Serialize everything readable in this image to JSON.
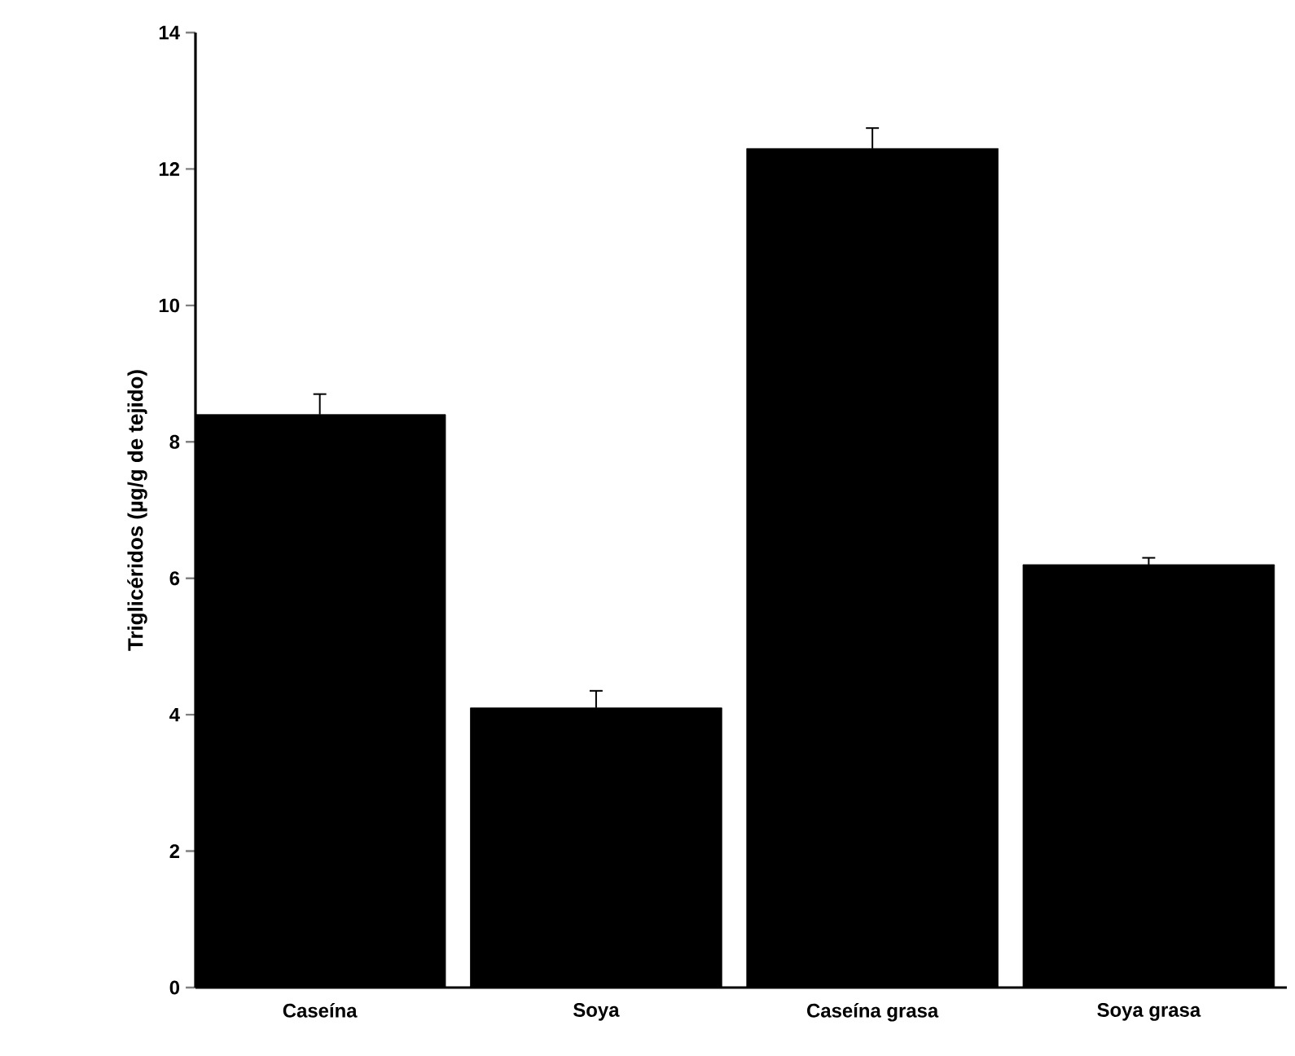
{
  "chart_data": {
    "type": "bar",
    "ylabel": "Triglicéridos (µg/g de tejido)",
    "categories": [
      "Caseína",
      "Soya",
      "Caseína grasa",
      "Soya grasa"
    ],
    "values": [
      8.4,
      4.1,
      12.3,
      6.2
    ],
    "errors": [
      0.3,
      0.25,
      0.3,
      0.1
    ],
    "color": "#000000",
    "ylim": [
      0,
      14
    ],
    "yticks": [
      0,
      2,
      4,
      6,
      8,
      10,
      12,
      14
    ]
  }
}
